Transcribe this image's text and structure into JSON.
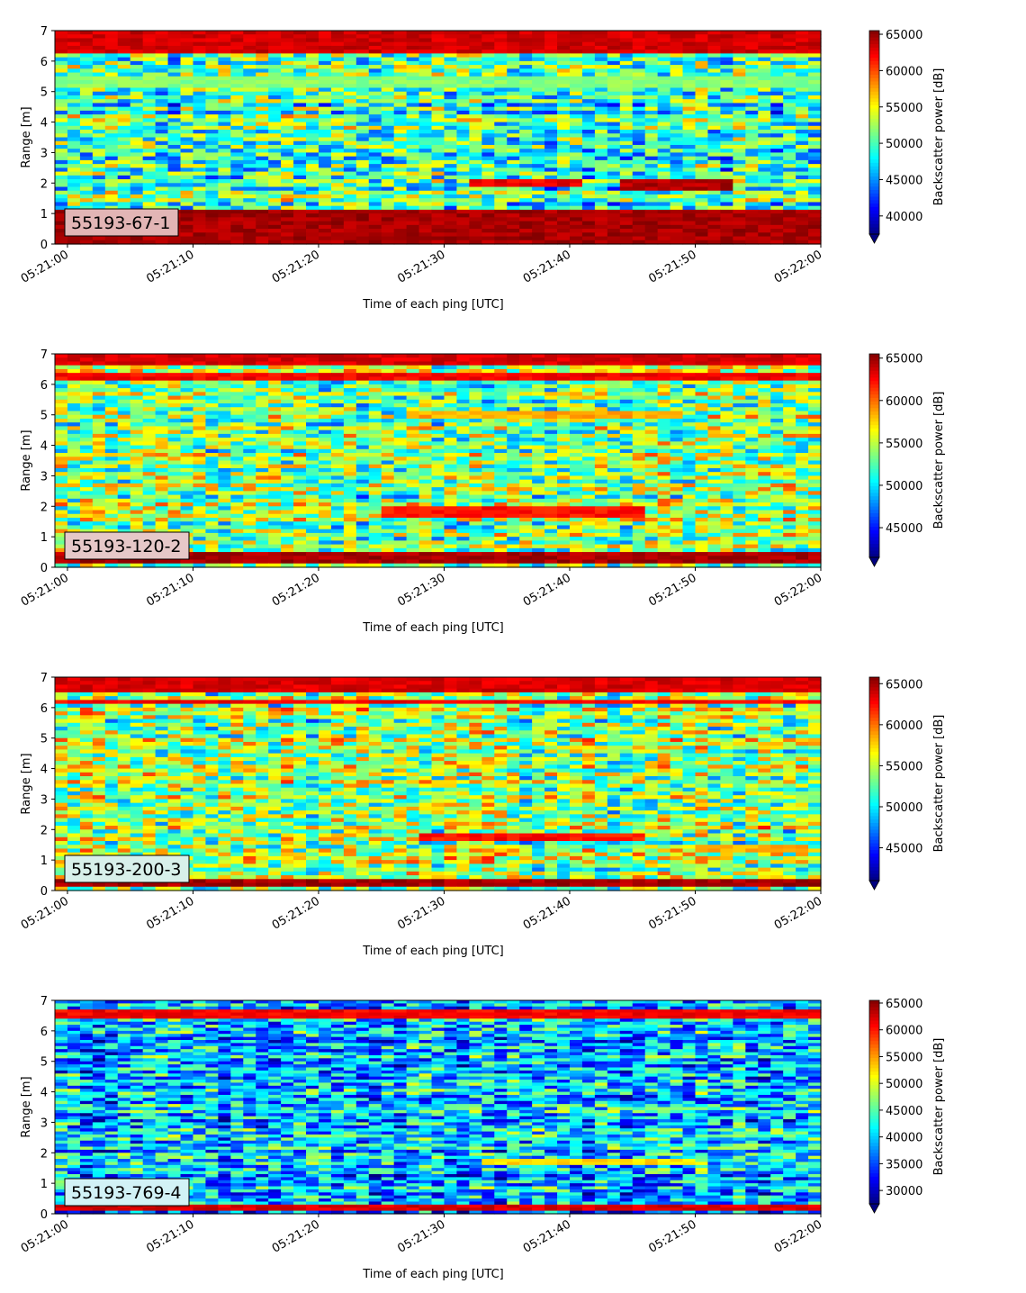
{
  "chart_data": [
    {
      "type": "heatmap",
      "xlabel": "Time of each ping [UTC]",
      "ylabel": "Range [m]",
      "xticks": [
        "05:21:00",
        "05:21:10",
        "05:21:20",
        "05:21:30",
        "05:21:40",
        "05:21:50",
        "05:22:00"
      ],
      "xlim": [
        "05:20:59",
        "05:22:00"
      ],
      "yticks": [
        0,
        1,
        2,
        3,
        4,
        5,
        6,
        7
      ],
      "ylim": [
        0,
        7
      ],
      "colormap": "jet",
      "annotation": "55193-67-1",
      "annotation_bg": "#e2b5b5",
      "colorbar": {
        "label": "Backscatter power [dB]",
        "ticks": [
          40000,
          45000,
          50000,
          55000,
          60000,
          65000
        ],
        "range": [
          37500,
          65500
        ],
        "extend": "min"
      },
      "features": [
        {
          "y_from": 0,
          "y_to": 1.1,
          "level": 1.0
        },
        {
          "y_from": 6.3,
          "y_to": 7,
          "level": 0.96
        },
        {
          "y_from": 1.75,
          "y_to": 2.1,
          "t_from": 45,
          "t_to": 53,
          "level": 0.99
        },
        {
          "y_from": 1.85,
          "y_to": 2.15,
          "t_from": 33,
          "t_to": 41,
          "level": 0.93
        },
        {
          "y_from": 5.1,
          "y_to": 5.5,
          "level": 0.55
        }
      ]
    },
    {
      "type": "heatmap",
      "xlabel": "Time of each ping [UTC]",
      "ylabel": "Range [m]",
      "xticks": [
        "05:21:00",
        "05:21:10",
        "05:21:20",
        "05:21:30",
        "05:21:40",
        "05:21:50",
        "05:22:00"
      ],
      "xlim": [
        "05:20:59",
        "05:22:00"
      ],
      "yticks": [
        0,
        1,
        2,
        3,
        4,
        5,
        6,
        7
      ],
      "ylim": [
        0,
        7
      ],
      "colormap": "jet",
      "annotation": "55193-120-2",
      "annotation_bg": "#e6c8c8",
      "colorbar": {
        "label": "Backscatter power [dB]",
        "ticks": [
          45000,
          50000,
          55000,
          60000,
          65000
        ],
        "range": [
          41500,
          65500
        ],
        "extend": "min"
      },
      "features": [
        {
          "y_from": 0.1,
          "y_to": 0.55,
          "level": 1.0
        },
        {
          "y_from": 6.1,
          "y_to": 6.4,
          "level": 0.92
        },
        {
          "y_from": 6.6,
          "y_to": 7,
          "level": 0.95
        },
        {
          "y_from": 1.65,
          "y_to": 1.95,
          "t_from": 26,
          "t_to": 46,
          "level": 0.9
        },
        {
          "y_from": 4.9,
          "y_to": 5.1,
          "t_from": 28,
          "t_to": 49,
          "level": 0.75
        }
      ]
    },
    {
      "type": "heatmap",
      "xlabel": "Time of each ping [UTC]",
      "ylabel": "Range [m]",
      "xticks": [
        "05:21:00",
        "05:21:10",
        "05:21:20",
        "05:21:30",
        "05:21:40",
        "05:21:50",
        "05:22:00"
      ],
      "xlim": [
        "05:20:59",
        "05:22:00"
      ],
      "yticks": [
        0,
        1,
        2,
        3,
        4,
        5,
        6,
        7
      ],
      "ylim": [
        0,
        7
      ],
      "colormap": "jet",
      "annotation": "55193-200-3",
      "annotation_bg": "#d8f0ea",
      "colorbar": {
        "label": "Backscatter power [dB]",
        "ticks": [
          45000,
          50000,
          55000,
          60000,
          65000
        ],
        "range": [
          41000,
          65800
        ],
        "extend": "min"
      },
      "features": [
        {
          "y_from": 0.1,
          "y_to": 0.4,
          "level": 1.0
        },
        {
          "y_from": 6.1,
          "y_to": 6.3,
          "level": 0.92
        },
        {
          "y_from": 6.5,
          "y_to": 7,
          "level": 0.95
        },
        {
          "y_from": 1.65,
          "y_to": 1.9,
          "t_from": 29,
          "t_to": 46,
          "level": 0.9
        },
        {
          "y_from": 1.3,
          "y_to": 1.45,
          "t_from": 52,
          "t_to": 59,
          "level": 0.75
        }
      ]
    },
    {
      "type": "heatmap",
      "xlabel": "Time of each ping [UTC]",
      "ylabel": "Range [m]",
      "xticks": [
        "05:21:00",
        "05:21:10",
        "05:21:20",
        "05:21:30",
        "05:21:40",
        "05:21:50",
        "05:22:00"
      ],
      "xlim": [
        "05:20:59",
        "05:22:00"
      ],
      "yticks": [
        0,
        1,
        2,
        3,
        4,
        5,
        6,
        7
      ],
      "ylim": [
        0,
        7
      ],
      "colormap": "jet",
      "annotation": "55193-769-4",
      "annotation_bg": "#d2f2f6",
      "colorbar": {
        "label": "Backscatter power [dB]",
        "ticks": [
          30000,
          35000,
          40000,
          45000,
          50000,
          55000,
          60000,
          65000
        ],
        "range": [
          27500,
          65500
        ],
        "extend": "min"
      },
      "features": [
        {
          "y_from": 0.1,
          "y_to": 0.3,
          "level": 0.95
        },
        {
          "y_from": 6.4,
          "y_to": 6.7,
          "level": 0.92
        },
        {
          "y_from": 1.6,
          "y_to": 1.8,
          "t_from": 34,
          "t_to": 50,
          "level": 0.7
        }
      ]
    }
  ]
}
